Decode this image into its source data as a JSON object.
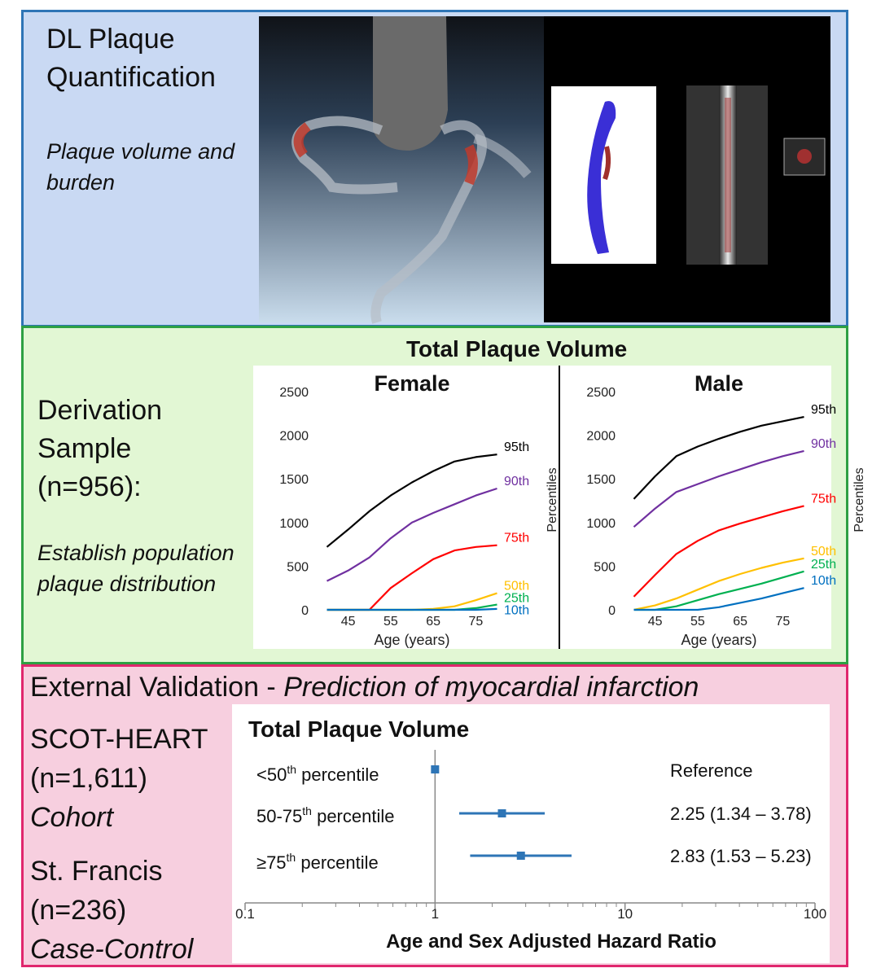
{
  "panel1": {
    "title_line1": "DL Plaque",
    "title_line2": "Quantification",
    "subtitle_line1": "Plaque volume and",
    "subtitle_line2": "burden"
  },
  "panel2": {
    "heading_line1": "Derivation",
    "heading_line2": "Sample",
    "heading_line3": "(n=956):",
    "sub_line1": "Establish population",
    "sub_line2": "plaque distribution"
  },
  "panel3": {
    "title_plain": "External Validation - ",
    "title_italic": "Prediction of myocardial infarction",
    "cohort1_line1": "SCOT-HEART",
    "cohort1_line2": "(n=1,611)",
    "cohort1_line3": "Cohort",
    "cohort2_line1": "St. Francis",
    "cohort2_line2": "(n=236)",
    "cohort2_line3": "Case-Control"
  },
  "chart_data": [
    {
      "type": "line",
      "title": "Total Plaque Volume",
      "subtitle": "Female",
      "xlabel": "Age (years)",
      "ylabel": "Percentiles",
      "xlim": [
        38,
        82
      ],
      "ylim": [
        0,
        2500
      ],
      "xticks": [
        45,
        55,
        65,
        75
      ],
      "yticks": [
        0,
        500,
        1000,
        1500,
        2000,
        2500
      ],
      "series": [
        {
          "name": "95th",
          "color": "#000000",
          "x": [
            40,
            45,
            50,
            55,
            60,
            65,
            70,
            75,
            80
          ],
          "y": [
            720,
            920,
            1130,
            1310,
            1460,
            1590,
            1700,
            1750,
            1780
          ]
        },
        {
          "name": "90th",
          "color": "#7030a0",
          "x": [
            40,
            45,
            50,
            55,
            60,
            65,
            70,
            75,
            80
          ],
          "y": [
            330,
            450,
            600,
            820,
            1000,
            1110,
            1210,
            1310,
            1390
          ]
        },
        {
          "name": "75th",
          "color": "#ff0000",
          "x": [
            40,
            45,
            50,
            55,
            60,
            65,
            70,
            75,
            80
          ],
          "y": [
            0,
            0,
            0,
            250,
            420,
            580,
            680,
            720,
            740
          ]
        },
        {
          "name": "50th",
          "color": "#ffc000",
          "x": [
            40,
            45,
            50,
            55,
            60,
            65,
            70,
            75,
            80
          ],
          "y": [
            0,
            0,
            0,
            0,
            0,
            10,
            40,
            110,
            190
          ]
        },
        {
          "name": "25th",
          "color": "#00b050",
          "x": [
            40,
            45,
            50,
            55,
            60,
            65,
            70,
            75,
            80
          ],
          "y": [
            0,
            0,
            0,
            0,
            0,
            0,
            0,
            20,
            60
          ]
        },
        {
          "name": "10th",
          "color": "#0070c0",
          "x": [
            40,
            45,
            50,
            55,
            60,
            65,
            70,
            75,
            80
          ],
          "y": [
            0,
            0,
            0,
            0,
            0,
            0,
            0,
            0,
            10
          ]
        }
      ]
    },
    {
      "type": "line",
      "subtitle": "Male",
      "xlabel": "Age (years)",
      "ylabel": "Percentiles",
      "xlim": [
        38,
        82
      ],
      "ylim": [
        0,
        2500
      ],
      "xticks": [
        45,
        55,
        65,
        75
      ],
      "yticks": [
        0,
        500,
        1000,
        1500,
        2000,
        2500
      ],
      "series": [
        {
          "name": "95th",
          "color": "#000000",
          "x": [
            40,
            45,
            50,
            55,
            60,
            65,
            70,
            75,
            80
          ],
          "y": [
            1270,
            1530,
            1760,
            1870,
            1960,
            2040,
            2110,
            2160,
            2210
          ]
        },
        {
          "name": "90th",
          "color": "#7030a0",
          "x": [
            40,
            45,
            50,
            55,
            60,
            65,
            70,
            75,
            80
          ],
          "y": [
            950,
            1160,
            1350,
            1440,
            1530,
            1610,
            1690,
            1760,
            1820
          ]
        },
        {
          "name": "75th",
          "color": "#ff0000",
          "x": [
            40,
            45,
            50,
            55,
            60,
            65,
            70,
            75,
            80
          ],
          "y": [
            150,
            400,
            640,
            790,
            910,
            990,
            1060,
            1130,
            1190
          ]
        },
        {
          "name": "50th",
          "color": "#ffc000",
          "x": [
            40,
            45,
            50,
            55,
            60,
            65,
            70,
            75,
            80
          ],
          "y": [
            0,
            50,
            130,
            230,
            330,
            410,
            480,
            540,
            590
          ]
        },
        {
          "name": "25th",
          "color": "#00b050",
          "x": [
            40,
            45,
            50,
            55,
            60,
            65,
            70,
            75,
            80
          ],
          "y": [
            0,
            0,
            40,
            110,
            180,
            240,
            300,
            370,
            440
          ]
        },
        {
          "name": "10th",
          "color": "#0070c0",
          "x": [
            40,
            45,
            50,
            55,
            60,
            65,
            70,
            75,
            80
          ],
          "y": [
            0,
            0,
            0,
            0,
            30,
            80,
            130,
            190,
            250
          ]
        }
      ]
    },
    {
      "type": "forest",
      "title": "Total Plaque Volume",
      "xlabel": "Age and Sex Adjusted Hazard Ratio",
      "xscale": "log",
      "xlim": [
        0.1,
        100
      ],
      "xticks": [
        "0.1",
        "1",
        "10",
        "100"
      ],
      "rows": [
        {
          "label_base": "<50",
          "label_sup": "th",
          "label_rest": " percentile",
          "hr": 1.0,
          "lo": 1.0,
          "hi": 1.0,
          "text": "Reference"
        },
        {
          "label_base": "50-75",
          "label_sup": "th",
          "label_rest": " percentile",
          "hr": 2.25,
          "lo": 1.34,
          "hi": 3.78,
          "text": "2.25 (1.34 – 3.78)"
        },
        {
          "label_base": "≥75",
          "label_sup": "th",
          "label_rest": " percentile",
          "hr": 2.83,
          "lo": 1.53,
          "hi": 5.23,
          "text": "2.83 (1.53 – 5.23)"
        }
      ]
    }
  ]
}
